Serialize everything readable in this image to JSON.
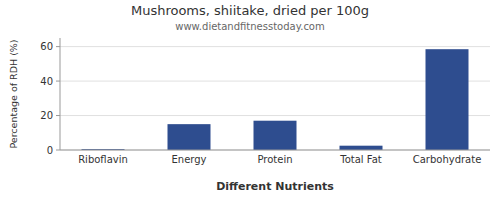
{
  "chart_data": {
    "type": "bar",
    "title": "Mushrooms, shiitake, dried per 100g",
    "subtitle": "www.dietandfitnesstoday.com",
    "x_label": "Different Nutrients",
    "y_label": "Percentage of RDH (%)",
    "categories": [
      "Riboflavin",
      "Energy",
      "Protein",
      "Total Fat",
      "Carbohydrate"
    ],
    "values": [
      0.5,
      15,
      17,
      2.5,
      58.5
    ],
    "color": "#2e4d8f",
    "ylim": [
      0,
      65
    ],
    "yticks": [
      0,
      20,
      40,
      60
    ],
    "grid": true
  }
}
